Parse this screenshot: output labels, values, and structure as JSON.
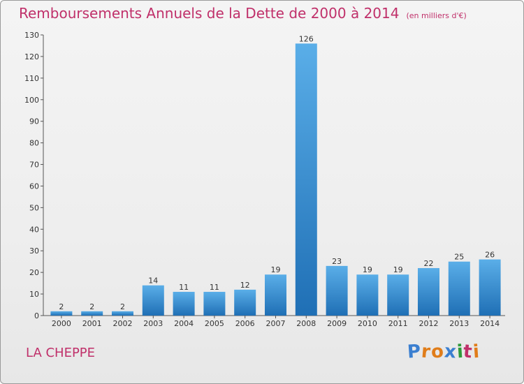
{
  "header": {
    "title": "Remboursements Annuels de la Dette de 2000 à 2014",
    "subtitle": "(en milliers d'€)"
  },
  "footer": {
    "commune": "LA CHEPPE",
    "brand": "Proxiti",
    "brand_letters": [
      "P",
      "r",
      "o",
      "x",
      "i",
      "t",
      "i"
    ],
    "brand_colors": [
      "#3b7fd0",
      "#e07d1a",
      "#e07d1a",
      "#3b7fd0",
      "#2e9a3a",
      "#c0306a",
      "#e07d1a"
    ]
  },
  "colors": {
    "accent": "#c0306a",
    "bar_top": "#5aaee8",
    "bar_bottom": "#1f6fb5",
    "axis": "#555555"
  },
  "chart_data": {
    "type": "bar",
    "title": "Remboursements Annuels de la Dette de 2000 à 2014",
    "subtitle": "(en milliers d'€)",
    "categories": [
      "2000",
      "2001",
      "2002",
      "2003",
      "2004",
      "2005",
      "2006",
      "2007",
      "2008",
      "2009",
      "2010",
      "2011",
      "2012",
      "2013",
      "2014"
    ],
    "values": [
      2,
      2,
      2,
      14,
      11,
      11,
      12,
      19,
      126,
      23,
      19,
      19,
      22,
      25,
      26
    ],
    "ylim": [
      0,
      130
    ],
    "yticks": [
      0,
      10,
      20,
      30,
      40,
      50,
      60,
      70,
      80,
      90,
      100,
      110,
      120,
      130
    ],
    "grid": false,
    "legend": "none"
  }
}
